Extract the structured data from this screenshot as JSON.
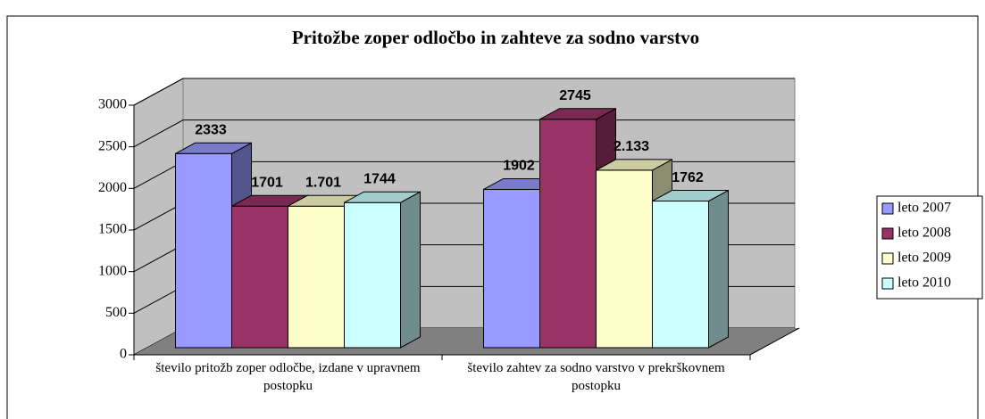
{
  "chart_data": {
    "type": "bar3d",
    "title": "Pritožbe zoper odločbo in zahteve za sodno varstvo",
    "categories": [
      "število pritožb zoper odločbe, izdane v upravnem postopku",
      "število zahtev za sodno varstvo v prekrškovnem postopku"
    ],
    "series": [
      {
        "name": "leto 2007",
        "color": "#9999ff",
        "values": [
          2333,
          1902
        ]
      },
      {
        "name": "leto 2008",
        "color": "#993366",
        "values": [
          1701,
          2745
        ]
      },
      {
        "name": "leto 2009",
        "color": "#ffffcc",
        "values": [
          1701,
          2133
        ],
        "value_labels": [
          "1.701",
          "2.133"
        ]
      },
      {
        "name": "leto 2010",
        "color": "#ccffff",
        "values": [
          1744,
          1762
        ]
      }
    ],
    "ylim": [
      0,
      3000
    ],
    "yticks": [
      0,
      500,
      1000,
      1500,
      2000,
      2500,
      3000
    ],
    "grid": true,
    "legend": "right"
  }
}
